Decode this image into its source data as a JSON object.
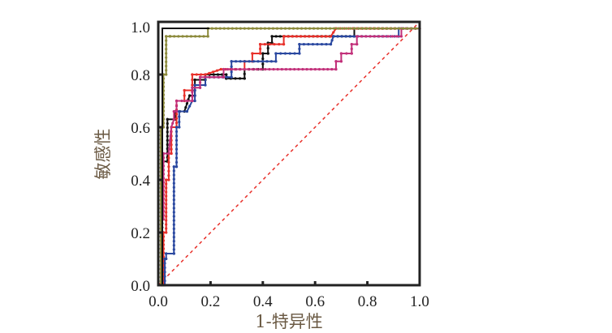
{
  "chart_data": {
    "type": "line",
    "title": "",
    "xlabel": "1-特异性",
    "ylabel": "敏感性",
    "xlim": [
      0,
      1
    ],
    "ylim": [
      0,
      1
    ],
    "xticks": [
      "0.0",
      "0.2",
      "0.4",
      "0.6",
      "0.8",
      "1.0"
    ],
    "yticks": [
      "0.0",
      "0.2",
      "0.4",
      "0.6",
      "0.8",
      "1.0"
    ],
    "grid": false,
    "legend": "none",
    "reference_line": {
      "points": [
        [
          0,
          0
        ],
        [
          1,
          1
        ]
      ],
      "color": "#e8302a",
      "style": "dashed"
    },
    "series": [
      {
        "name": "black",
        "color": "#111111",
        "points": [
          [
            0.015,
            0
          ],
          [
            0.015,
            0.47
          ],
          [
            0.035,
            0.47
          ],
          [
            0.035,
            0.63
          ],
          [
            0.065,
            0.63
          ],
          [
            0.065,
            0.66
          ],
          [
            0.1,
            0.66
          ],
          [
            0.12,
            0.72
          ],
          [
            0.14,
            0.72
          ],
          [
            0.14,
            0.78
          ],
          [
            0.18,
            0.78
          ],
          [
            0.18,
            0.8
          ],
          [
            0.26,
            0.8
          ],
          [
            0.26,
            0.785
          ],
          [
            0.33,
            0.785
          ],
          [
            0.33,
            0.82
          ],
          [
            0.4,
            0.82
          ],
          [
            0.4,
            0.88
          ],
          [
            0.42,
            0.88
          ],
          [
            0.42,
            0.92
          ],
          [
            0.435,
            0.92
          ],
          [
            0.435,
            0.945
          ],
          [
            0.75,
            0.945
          ],
          [
            0.75,
            0.975
          ],
          [
            1,
            0.975
          ]
        ]
      },
      {
        "name": "red",
        "color": "#e8302a",
        "points": [
          [
            0.02,
            0
          ],
          [
            0.02,
            0.2
          ],
          [
            0.03,
            0.2
          ],
          [
            0.03,
            0.4
          ],
          [
            0.04,
            0.4
          ],
          [
            0.04,
            0.5
          ],
          [
            0.05,
            0.5
          ],
          [
            0.05,
            0.6
          ],
          [
            0.07,
            0.6
          ],
          [
            0.07,
            0.7
          ],
          [
            0.1,
            0.7
          ],
          [
            0.1,
            0.74
          ],
          [
            0.13,
            0.74
          ],
          [
            0.13,
            0.8
          ],
          [
            0.18,
            0.8
          ],
          [
            0.24,
            0.82
          ],
          [
            0.33,
            0.82
          ],
          [
            0.33,
            0.85
          ],
          [
            0.36,
            0.85
          ],
          [
            0.36,
            0.88
          ],
          [
            0.39,
            0.88
          ],
          [
            0.39,
            0.915
          ],
          [
            0.48,
            0.915
          ],
          [
            0.48,
            0.945
          ],
          [
            0.66,
            0.945
          ],
          [
            0.68,
            0.975
          ],
          [
            1,
            0.975
          ]
        ]
      },
      {
        "name": "blue",
        "color": "#2a48a0",
        "points": [
          [
            0.025,
            0
          ],
          [
            0.025,
            0.1
          ],
          [
            0.03,
            0.1
          ],
          [
            0.03,
            0.12
          ],
          [
            0.06,
            0.12
          ],
          [
            0.06,
            0.45
          ],
          [
            0.07,
            0.45
          ],
          [
            0.07,
            0.6
          ],
          [
            0.08,
            0.6
          ],
          [
            0.08,
            0.66
          ],
          [
            0.11,
            0.66
          ],
          [
            0.13,
            0.7
          ],
          [
            0.14,
            0.7
          ],
          [
            0.14,
            0.76
          ],
          [
            0.18,
            0.76
          ],
          [
            0.18,
            0.79
          ],
          [
            0.28,
            0.79
          ],
          [
            0.28,
            0.85
          ],
          [
            0.45,
            0.85
          ],
          [
            0.45,
            0.88
          ],
          [
            0.54,
            0.88
          ],
          [
            0.54,
            0.915
          ],
          [
            0.66,
            0.915
          ],
          [
            0.67,
            0.945
          ],
          [
            0.92,
            0.945
          ],
          [
            0.92,
            0.975
          ],
          [
            1,
            0.975
          ]
        ]
      },
      {
        "name": "magenta",
        "color": "#c2307a",
        "points": [
          [
            0.02,
            0.25
          ],
          [
            0.02,
            0.5
          ],
          [
            0.04,
            0.5
          ],
          [
            0.05,
            0.6
          ],
          [
            0.06,
            0.63
          ],
          [
            0.06,
            0.66
          ],
          [
            0.07,
            0.66
          ],
          [
            0.07,
            0.7
          ],
          [
            0.13,
            0.7
          ],
          [
            0.13,
            0.75
          ],
          [
            0.16,
            0.75
          ],
          [
            0.16,
            0.79
          ],
          [
            0.25,
            0.79
          ],
          [
            0.25,
            0.82
          ],
          [
            0.68,
            0.82
          ],
          [
            0.68,
            0.85
          ],
          [
            0.7,
            0.85
          ],
          [
            0.7,
            0.88
          ],
          [
            0.74,
            0.88
          ],
          [
            0.74,
            0.915
          ],
          [
            0.76,
            0.915
          ],
          [
            0.76,
            0.945
          ],
          [
            0.93,
            0.945
          ],
          [
            0.93,
            0.975
          ],
          [
            1,
            0.975
          ]
        ]
      },
      {
        "name": "olive",
        "color": "#8c8a3c",
        "points": [
          [
            0.01,
            0
          ],
          [
            0.01,
            0.6
          ],
          [
            0.02,
            0.6
          ],
          [
            0.02,
            0.8
          ],
          [
            0.03,
            0.8
          ],
          [
            0.03,
            0.945
          ],
          [
            0.045,
            0.945
          ],
          [
            0.045,
            0.945
          ],
          [
            0.19,
            0.945
          ],
          [
            0.19,
            0.975
          ],
          [
            1,
            0.975
          ]
        ]
      }
    ]
  }
}
